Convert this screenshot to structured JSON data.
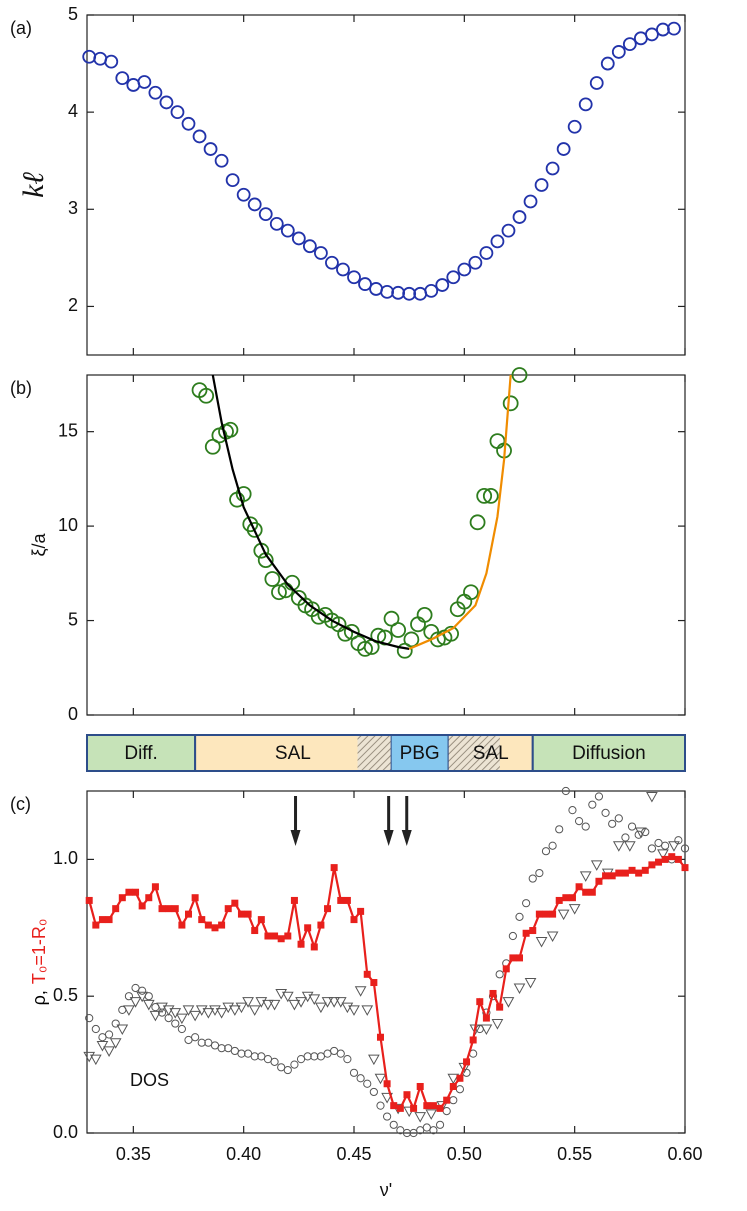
{
  "chart_data": [
    {
      "type": "scatter",
      "label": "(a)",
      "ylabel": "kℓ",
      "xlim": [
        0.329,
        0.6
      ],
      "xticks": [
        0.35,
        0.4,
        0.45,
        0.5,
        0.55,
        0.6
      ],
      "ylim": [
        1.5,
        5
      ],
      "yticks": [
        2,
        3,
        4,
        5
      ],
      "series": [
        {
          "marker": "circle",
          "color": "#2233aa",
          "x": [
            0.33,
            0.335,
            0.34,
            0.345,
            0.35,
            0.355,
            0.36,
            0.365,
            0.37,
            0.375,
            0.38,
            0.385,
            0.39,
            0.395,
            0.4,
            0.405,
            0.41,
            0.415,
            0.42,
            0.425,
            0.43,
            0.435,
            0.44,
            0.445,
            0.45,
            0.455,
            0.46,
            0.465,
            0.47,
            0.475,
            0.48,
            0.485,
            0.49,
            0.495,
            0.5,
            0.505,
            0.51,
            0.515,
            0.52,
            0.525,
            0.53,
            0.535,
            0.54,
            0.545,
            0.55,
            0.555,
            0.56,
            0.565,
            0.57,
            0.575,
            0.58,
            0.585,
            0.59,
            0.595
          ],
          "values": [
            4.57,
            4.55,
            4.52,
            4.35,
            4.28,
            4.31,
            4.2,
            4.1,
            4.0,
            3.88,
            3.75,
            3.62,
            3.5,
            3.3,
            3.15,
            3.05,
            2.95,
            2.85,
            2.78,
            2.7,
            2.62,
            2.55,
            2.45,
            2.38,
            2.3,
            2.23,
            2.18,
            2.15,
            2.14,
            2.13,
            2.13,
            2.16,
            2.22,
            2.3,
            2.38,
            2.45,
            2.55,
            2.67,
            2.78,
            2.92,
            3.08,
            3.25,
            3.42,
            3.62,
            3.85,
            4.08,
            4.3,
            4.5,
            4.62,
            4.7,
            4.76,
            4.8,
            4.85,
            4.86
          ]
        }
      ]
    },
    {
      "type": "scatter",
      "label": "(b)",
      "ylabel": "ξ/a",
      "xlim": [
        0.329,
        0.6
      ],
      "xticks": [
        0.35,
        0.4,
        0.45,
        0.5,
        0.55,
        0.6
      ],
      "ylim": [
        0,
        18
      ],
      "yticks": [
        0,
        5,
        10,
        15
      ],
      "series": [
        {
          "marker": "circle",
          "color": "#2e7d1e",
          "x": [
            0.38,
            0.383,
            0.386,
            0.389,
            0.392,
            0.394,
            0.397,
            0.4,
            0.403,
            0.405,
            0.408,
            0.41,
            0.413,
            0.416,
            0.419,
            0.422,
            0.425,
            0.428,
            0.431,
            0.434,
            0.437,
            0.44,
            0.443,
            0.446,
            0.449,
            0.452,
            0.455,
            0.458,
            0.461,
            0.464,
            0.467,
            0.47,
            0.473,
            0.476,
            0.479,
            0.482,
            0.485,
            0.488,
            0.491,
            0.494,
            0.497,
            0.5,
            0.503,
            0.506,
            0.509,
            0.512,
            0.515,
            0.518,
            0.521,
            0.525
          ],
          "values": [
            17.2,
            16.9,
            14.2,
            14.8,
            15.0,
            15.1,
            11.4,
            11.7,
            10.1,
            9.8,
            8.7,
            8.2,
            7.2,
            6.5,
            6.6,
            7.0,
            6.2,
            5.8,
            5.6,
            5.2,
            5.3,
            5.0,
            4.8,
            4.3,
            4.4,
            3.8,
            3.5,
            3.6,
            4.2,
            4.1,
            5.1,
            4.5,
            3.4,
            4.0,
            4.8,
            5.3,
            4.4,
            4.0,
            4.1,
            4.3,
            5.6,
            6.0,
            6.5,
            10.2,
            11.6,
            11.6,
            14.5,
            14.0,
            16.5,
            18.0
          ]
        },
        {
          "line": true,
          "color": "#000000",
          "x": [
            0.386,
            0.39,
            0.395,
            0.4,
            0.41,
            0.42,
            0.43,
            0.44,
            0.45,
            0.46,
            0.47,
            0.475
          ],
          "values": [
            18,
            15.5,
            13,
            11,
            8.5,
            6.9,
            5.8,
            5,
            4.4,
            3.9,
            3.6,
            3.5
          ]
        },
        {
          "line": true,
          "color": "#f08c00",
          "x": [
            0.475,
            0.485,
            0.495,
            0.505,
            0.51,
            0.515,
            0.518,
            0.521
          ],
          "values": [
            3.5,
            4,
            4.6,
            5.8,
            7.5,
            10.5,
            13.5,
            18
          ]
        }
      ]
    },
    {
      "type": "scatter",
      "label": "(c)",
      "xlabel": "ν'",
      "ylabel_parts": [
        {
          "text": "ρ,",
          "color": "#000000"
        },
        {
          "text": "T₀=1-R₀",
          "color": "#e8201c"
        }
      ],
      "annotation": "DOS",
      "arrows": [
        0.4235,
        0.4657,
        0.4739
      ],
      "regions": [
        {
          "label": "Diff.",
          "from": 0.329,
          "to": 0.378,
          "color": "#c6e3b8"
        },
        {
          "label": "SAL",
          "from": 0.378,
          "to": 0.4666,
          "color": "#fde7bd"
        },
        {
          "label": "PBG",
          "from": 0.4666,
          "to": 0.4929,
          "color": "#86c8ef"
        },
        {
          "label": "SAL",
          "from": 0.4929,
          "to": 0.531,
          "color": "#fde7bd"
        },
        {
          "label": "Diffusion",
          "from": 0.531,
          "to": 0.6,
          "color": "#c6e3b8"
        }
      ],
      "hatched": [
        [
          0.4516,
          0.4666
        ],
        [
          0.4929,
          0.5161
        ]
      ],
      "xlim": [
        0.329,
        0.6
      ],
      "xticks": [
        0.35,
        {
          "value": 0.4,
          "label": "0.40"
        },
        0.45,
        {
          "value": 0.5,
          "label": "0.50"
        },
        0.55,
        {
          "value": 0.6,
          "label": "0.60"
        }
      ],
      "ylim": [
        0,
        1.25
      ],
      "yticks": [
        {
          "value": 0,
          "label": "0.0"
        },
        0.5,
        {
          "value": 1,
          "label": "1.0"
        }
      ],
      "series": [
        {
          "marker": "circle",
          "color": "#555555",
          "x": [
            0.33,
            0.333,
            0.336,
            0.339,
            0.342,
            0.345,
            0.348,
            0.351,
            0.354,
            0.357,
            0.36,
            0.363,
            0.366,
            0.369,
            0.372,
            0.375,
            0.378,
            0.381,
            0.384,
            0.387,
            0.39,
            0.393,
            0.396,
            0.399,
            0.402,
            0.405,
            0.408,
            0.411,
            0.414,
            0.417,
            0.42,
            0.423,
            0.426,
            0.429,
            0.432,
            0.435,
            0.438,
            0.441,
            0.444,
            0.447,
            0.45,
            0.453,
            0.456,
            0.459,
            0.462,
            0.465,
            0.468,
            0.471,
            0.474,
            0.477,
            0.48,
            0.483,
            0.486,
            0.489,
            0.492,
            0.495,
            0.498,
            0.501,
            0.504,
            0.507,
            0.51,
            0.513,
            0.516,
            0.519,
            0.522,
            0.525,
            0.528,
            0.531,
            0.534,
            0.537,
            0.54,
            0.543,
            0.546,
            0.549,
            0.552,
            0.555,
            0.558,
            0.561,
            0.564,
            0.567,
            0.57,
            0.573,
            0.576,
            0.579,
            0.582,
            0.585,
            0.588,
            0.591,
            0.594,
            0.597,
            0.6
          ],
          "values": [
            0.42,
            0.38,
            0.35,
            0.36,
            0.4,
            0.45,
            0.5,
            0.53,
            0.52,
            0.5,
            0.46,
            0.44,
            0.42,
            0.4,
            0.38,
            0.34,
            0.35,
            0.33,
            0.33,
            0.32,
            0.31,
            0.31,
            0.3,
            0.29,
            0.29,
            0.28,
            0.28,
            0.27,
            0.26,
            0.24,
            0.23,
            0.25,
            0.27,
            0.28,
            0.28,
            0.28,
            0.29,
            0.3,
            0.29,
            0.27,
            0.22,
            0.2,
            0.18,
            0.15,
            0.1,
            0.06,
            0.03,
            0.01,
            0,
            0,
            0.01,
            0.02,
            0.01,
            0.03,
            0.08,
            0.12,
            0.16,
            0.22,
            0.29,
            0.38,
            0.44,
            0.5,
            0.58,
            0.62,
            0.72,
            0.79,
            0.84,
            0.93,
            0.95,
            1.03,
            1.05,
            1.11,
            1.25,
            1.18,
            1.14,
            1.12,
            1.2,
            1.23,
            1.17,
            1.13,
            1.15,
            1.08,
            1.12,
            1.09,
            1.1,
            1.04,
            1.06,
            1.05,
            1.0,
            1.07,
            1.04
          ]
        },
        {
          "marker": "triangle",
          "color": "#555555",
          "x": [
            0.33,
            0.333,
            0.336,
            0.339,
            0.342,
            0.345,
            0.348,
            0.351,
            0.354,
            0.357,
            0.36,
            0.363,
            0.366,
            0.369,
            0.372,
            0.375,
            0.378,
            0.381,
            0.384,
            0.387,
            0.39,
            0.393,
            0.396,
            0.399,
            0.402,
            0.405,
            0.408,
            0.411,
            0.414,
            0.417,
            0.42,
            0.423,
            0.426,
            0.429,
            0.432,
            0.435,
            0.438,
            0.441,
            0.444,
            0.447,
            0.45,
            0.453,
            0.456,
            0.459,
            0.462,
            0.465,
            0.47,
            0.475,
            0.48,
            0.485,
            0.49,
            0.495,
            0.5,
            0.505,
            0.51,
            0.515,
            0.52,
            0.525,
            0.53,
            0.535,
            0.54,
            0.545,
            0.55,
            0.555,
            0.56,
            0.565,
            0.57,
            0.575,
            0.58,
            0.585,
            0.59,
            0.595
          ],
          "values": [
            0.28,
            0.27,
            0.32,
            0.3,
            0.33,
            0.38,
            0.45,
            0.48,
            0.5,
            0.47,
            0.43,
            0.46,
            0.45,
            0.44,
            0.42,
            0.45,
            0.43,
            0.45,
            0.44,
            0.45,
            0.44,
            0.46,
            0.45,
            0.46,
            0.48,
            0.45,
            0.48,
            0.47,
            0.47,
            0.51,
            0.5,
            0.47,
            0.48,
            0.5,
            0.49,
            0.46,
            0.48,
            0.48,
            0.48,
            0.46,
            0.45,
            0.52,
            0.45,
            0.27,
            0.2,
            0.13,
            0.09,
            0.08,
            0.06,
            0.07,
            0.1,
            0.2,
            0.24,
            0.38,
            0.38,
            0.4,
            0.48,
            0.53,
            0.55,
            0.7,
            0.72,
            0.8,
            0.82,
            0.94,
            0.98,
            0.95,
            1.05,
            1.05,
            1.1,
            1.23,
            1.02,
            1.05
          ]
        },
        {
          "marker": "square",
          "line": true,
          "color": "#e8201c",
          "x": [
            0.33,
            0.333,
            0.336,
            0.339,
            0.342,
            0.345,
            0.348,
            0.351,
            0.354,
            0.357,
            0.36,
            0.363,
            0.366,
            0.369,
            0.372,
            0.375,
            0.378,
            0.381,
            0.384,
            0.387,
            0.39,
            0.393,
            0.396,
            0.399,
            0.402,
            0.405,
            0.408,
            0.411,
            0.414,
            0.417,
            0.42,
            0.423,
            0.426,
            0.429,
            0.432,
            0.435,
            0.438,
            0.441,
            0.444,
            0.447,
            0.45,
            0.453,
            0.456,
            0.459,
            0.462,
            0.465,
            0.468,
            0.471,
            0.474,
            0.477,
            0.48,
            0.483,
            0.486,
            0.489,
            0.492,
            0.495,
            0.498,
            0.501,
            0.504,
            0.507,
            0.51,
            0.513,
            0.516,
            0.519,
            0.522,
            0.525,
            0.528,
            0.531,
            0.534,
            0.537,
            0.54,
            0.543,
            0.546,
            0.549,
            0.552,
            0.555,
            0.558,
            0.561,
            0.564,
            0.567,
            0.57,
            0.573,
            0.576,
            0.579,
            0.582,
            0.585,
            0.588,
            0.591,
            0.594,
            0.597,
            0.6
          ],
          "values": [
            0.85,
            0.76,
            0.78,
            0.78,
            0.82,
            0.86,
            0.88,
            0.88,
            0.83,
            0.86,
            0.9,
            0.82,
            0.82,
            0.82,
            0.76,
            0.8,
            0.86,
            0.78,
            0.76,
            0.75,
            0.76,
            0.82,
            0.84,
            0.8,
            0.8,
            0.74,
            0.78,
            0.72,
            0.72,
            0.71,
            0.72,
            0.85,
            0.69,
            0.75,
            0.68,
            0.76,
            0.82,
            0.97,
            0.85,
            0.85,
            0.78,
            0.81,
            0.58,
            0.55,
            0.35,
            0.18,
            0.1,
            0.09,
            0.14,
            0.09,
            0.17,
            0.1,
            0.1,
            0.09,
            0.12,
            0.17,
            0.2,
            0.26,
            0.34,
            0.48,
            0.42,
            0.51,
            0.46,
            0.6,
            0.64,
            0.64,
            0.73,
            0.74,
            0.8,
            0.8,
            0.8,
            0.85,
            0.86,
            0.86,
            0.9,
            0.88,
            0.88,
            0.92,
            0.94,
            0.94,
            0.95,
            0.95,
            0.96,
            0.95,
            0.96,
            0.98,
            0.99,
            1.0,
            1.01,
            1.0,
            0.97
          ]
        }
      ]
    }
  ]
}
